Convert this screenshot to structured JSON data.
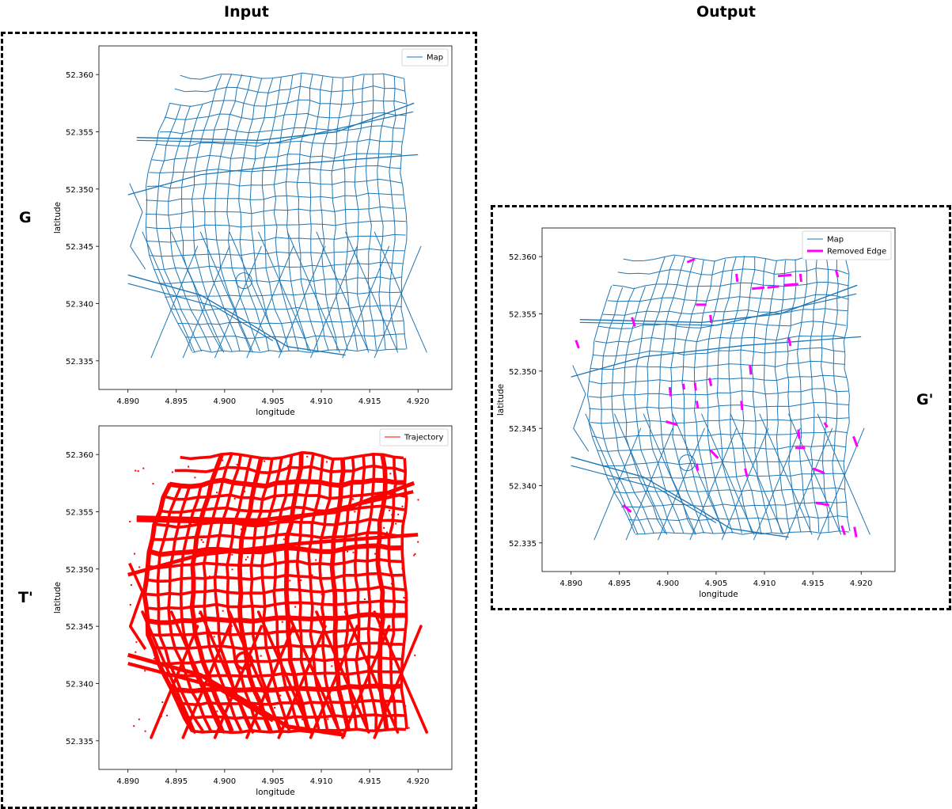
{
  "headings": {
    "input": "Input",
    "output": "Output"
  },
  "labels": {
    "g": "G",
    "t_prime": "T'",
    "g_prime": "G'"
  },
  "colors": {
    "map": "#1f77b4",
    "trajectory": "#ff0000",
    "removed": "#ff00ff"
  },
  "chart_data": [
    {
      "id": "map_input",
      "type": "line",
      "title": "",
      "xlabel": "longitude",
      "ylabel": "latitude",
      "xlim": [
        4.887,
        4.9235
      ],
      "ylim": [
        52.3325,
        52.3625
      ],
      "xticks": [
        4.89,
        4.895,
        4.9,
        4.905,
        4.91,
        4.915,
        4.92
      ],
      "yticks": [
        52.335,
        52.34,
        52.345,
        52.35,
        52.355,
        52.36
      ],
      "xtick_labels": [
        "4.890",
        "4.895",
        "4.900",
        "4.905",
        "4.910",
        "4.915",
        "4.920"
      ],
      "ytick_labels": [
        "52.335",
        "52.340",
        "52.345",
        "52.350",
        "52.355",
        "52.360"
      ],
      "legend": {
        "position": "top-right",
        "entries": [
          "Map"
        ]
      },
      "series": [
        {
          "name": "Map",
          "style": "network"
        }
      ],
      "extent": {
        "lon": [
          4.89,
          4.92
        ],
        "lat": [
          52.335,
          52.36
        ]
      }
    },
    {
      "id": "trajectory_input",
      "type": "line",
      "title": "",
      "xlabel": "longitude",
      "ylabel": "latitude",
      "xlim": [
        4.887,
        4.9235
      ],
      "ylim": [
        52.3325,
        52.3625
      ],
      "xticks": [
        4.89,
        4.895,
        4.9,
        4.905,
        4.91,
        4.915,
        4.92
      ],
      "yticks": [
        52.335,
        52.34,
        52.345,
        52.35,
        52.355,
        52.36
      ],
      "xtick_labels": [
        "4.890",
        "4.895",
        "4.900",
        "4.905",
        "4.910",
        "4.915",
        "4.920"
      ],
      "ytick_labels": [
        "52.335",
        "52.340",
        "52.345",
        "52.350",
        "52.355",
        "52.360"
      ],
      "legend": {
        "position": "top-right",
        "entries": [
          "Trajectory"
        ]
      },
      "series": [
        {
          "name": "Trajectory",
          "style": "dense"
        }
      ],
      "extent": {
        "lon": [
          4.89,
          4.92
        ],
        "lat": [
          52.335,
          52.36
        ]
      }
    },
    {
      "id": "map_output",
      "type": "line",
      "title": "",
      "xlabel": "longitude",
      "ylabel": "latitude",
      "xlim": [
        4.887,
        4.9235
      ],
      "ylim": [
        52.3325,
        52.3625
      ],
      "xticks": [
        4.89,
        4.895,
        4.9,
        4.905,
        4.91,
        4.915,
        4.92
      ],
      "yticks": [
        52.335,
        52.34,
        52.345,
        52.35,
        52.355,
        52.36
      ],
      "xtick_labels": [
        "4.890",
        "4.895",
        "4.900",
        "4.905",
        "4.910",
        "4.915",
        "4.920"
      ],
      "ytick_labels": [
        "52.335",
        "52.340",
        "52.345",
        "52.350",
        "52.355",
        "52.360"
      ],
      "legend": {
        "position": "top-right",
        "entries": [
          "Map",
          "Removed Edge"
        ]
      },
      "series": [
        {
          "name": "Map",
          "style": "network"
        },
        {
          "name": "Removed Edge",
          "style": "highlight"
        }
      ],
      "extent": {
        "lon": [
          4.89,
          4.92
        ],
        "lat": [
          52.335,
          52.36
        ]
      },
      "removed_edges": [
        [
          [
            4.902,
            52.3595
          ],
          [
            4.9028,
            52.3598
          ]
        ],
        [
          [
            4.9071,
            52.3585
          ],
          [
            4.9072,
            52.3578
          ]
        ],
        [
          [
            4.9114,
            52.3583
          ],
          [
            4.9128,
            52.3584
          ]
        ],
        [
          [
            4.9137,
            52.3585
          ],
          [
            4.9138,
            52.3578
          ]
        ],
        [
          [
            4.9087,
            52.3572
          ],
          [
            4.91,
            52.3573
          ]
        ],
        [
          [
            4.9103,
            52.3573
          ],
          [
            4.9115,
            52.3574
          ]
        ],
        [
          [
            4.912,
            52.3575
          ],
          [
            4.9135,
            52.3576
          ]
        ],
        [
          [
            4.9174,
            52.3588
          ],
          [
            4.9176,
            52.3582
          ]
        ],
        [
          [
            4.9029,
            52.3558
          ],
          [
            4.904,
            52.3558
          ]
        ],
        [
          [
            4.8963,
            52.3547
          ],
          [
            4.8966,
            52.3539
          ]
        ],
        [
          [
            4.9044,
            52.3549
          ],
          [
            4.9045,
            52.3542
          ]
        ],
        [
          [
            4.9125,
            52.3529
          ],
          [
            4.9127,
            52.3522
          ]
        ],
        [
          [
            4.8905,
            52.3527
          ],
          [
            4.8908,
            52.352
          ]
        ],
        [
          [
            4.9085,
            52.3505
          ],
          [
            4.9086,
            52.3497
          ]
        ],
        [
          [
            4.9002,
            52.3486
          ],
          [
            4.9003,
            52.3478
          ]
        ],
        [
          [
            4.9016,
            52.3489
          ],
          [
            4.9017,
            52.3484
          ]
        ],
        [
          [
            4.9028,
            52.349
          ],
          [
            4.9029,
            52.3483
          ]
        ],
        [
          [
            4.9043,
            52.3494
          ],
          [
            4.9045,
            52.3487
          ]
        ],
        [
          [
            4.903,
            52.3474
          ],
          [
            4.9031,
            52.3468
          ]
        ],
        [
          [
            4.9076,
            52.3474
          ],
          [
            4.9077,
            52.3466
          ]
        ],
        [
          [
            4.8998,
            52.3456
          ],
          [
            4.901,
            52.3453
          ]
        ],
        [
          [
            4.9135,
            52.3449
          ],
          [
            4.9136,
            52.3441
          ]
        ],
        [
          [
            4.9162,
            52.3455
          ],
          [
            4.9165,
            52.3451
          ]
        ],
        [
          [
            4.9192,
            52.3443
          ],
          [
            4.9196,
            52.3434
          ]
        ],
        [
          [
            4.9044,
            52.3431
          ],
          [
            4.9052,
            52.3424
          ]
        ],
        [
          [
            4.9132,
            52.3433
          ],
          [
            4.9142,
            52.3433
          ]
        ],
        [
          [
            4.903,
            52.3419
          ],
          [
            4.9031,
            52.3413
          ]
        ],
        [
          [
            4.908,
            52.3415
          ],
          [
            4.9082,
            52.3408
          ]
        ],
        [
          [
            4.915,
            52.3415
          ],
          [
            4.9162,
            52.3411
          ]
        ],
        [
          [
            4.8954,
            52.3383
          ],
          [
            4.8962,
            52.3377
          ]
        ],
        [
          [
            4.9153,
            52.3385
          ],
          [
            4.9167,
            52.3383
          ]
        ],
        [
          [
            4.918,
            52.3365
          ],
          [
            4.9183,
            52.3357
          ]
        ],
        [
          [
            4.9193,
            52.3364
          ],
          [
            4.9195,
            52.3355
          ]
        ]
      ]
    }
  ]
}
